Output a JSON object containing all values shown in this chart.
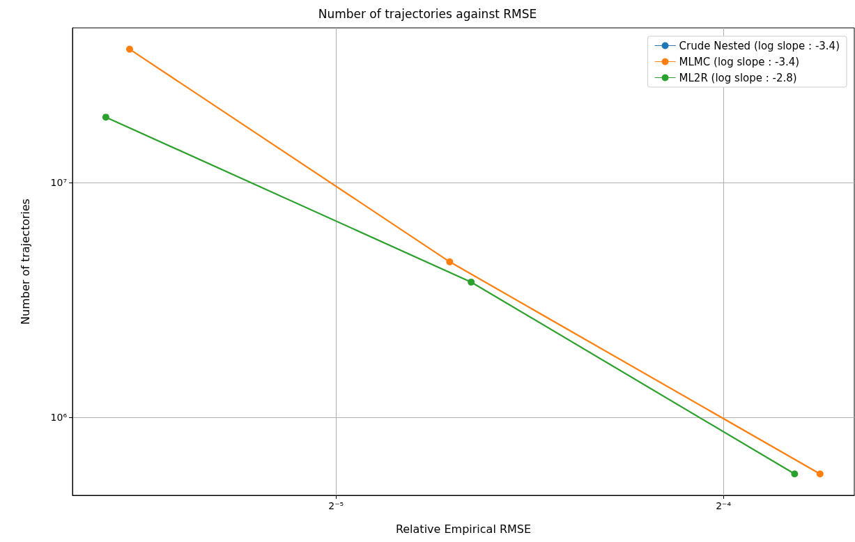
{
  "chart_data": {
    "type": "line",
    "title": "Number of trajectories against RMSE",
    "xlabel": "Relative Empirical RMSE",
    "ylabel": "Number of trajectories",
    "series": [
      {
        "name": "Crude Nested (log slope : -3.4)",
        "color": "#1f77b4"
      },
      {
        "name": "MLMC (log slope : -3.4)",
        "color": "#ff7f0e",
        "x": [
          0.0216,
          0.0383,
          0.0743
        ],
        "values": [
          37000000,
          4600000,
          575000
        ]
      },
      {
        "name": "ML2R (log slope : -2.8)",
        "color": "#2ca02c",
        "x": [
          0.0207,
          0.0398,
          0.071
        ],
        "values": [
          19000000,
          3770000,
          575000
        ]
      }
    ],
    "log": "xy",
    "xlim": [
      0.0195,
      0.079
    ],
    "ylim": [
      466000,
      45600000
    ],
    "xticks": [
      {
        "value": 0.03125,
        "label": "2⁻⁵"
      },
      {
        "value": 0.0625,
        "label": "2⁻⁴"
      }
    ],
    "yticks": [
      {
        "value": 1000000,
        "label": "10⁶"
      },
      {
        "value": 10000000,
        "label": "10⁷"
      }
    ],
    "grid": true,
    "legend": "top right",
    "marker": "circle",
    "line_style": "solid"
  }
}
